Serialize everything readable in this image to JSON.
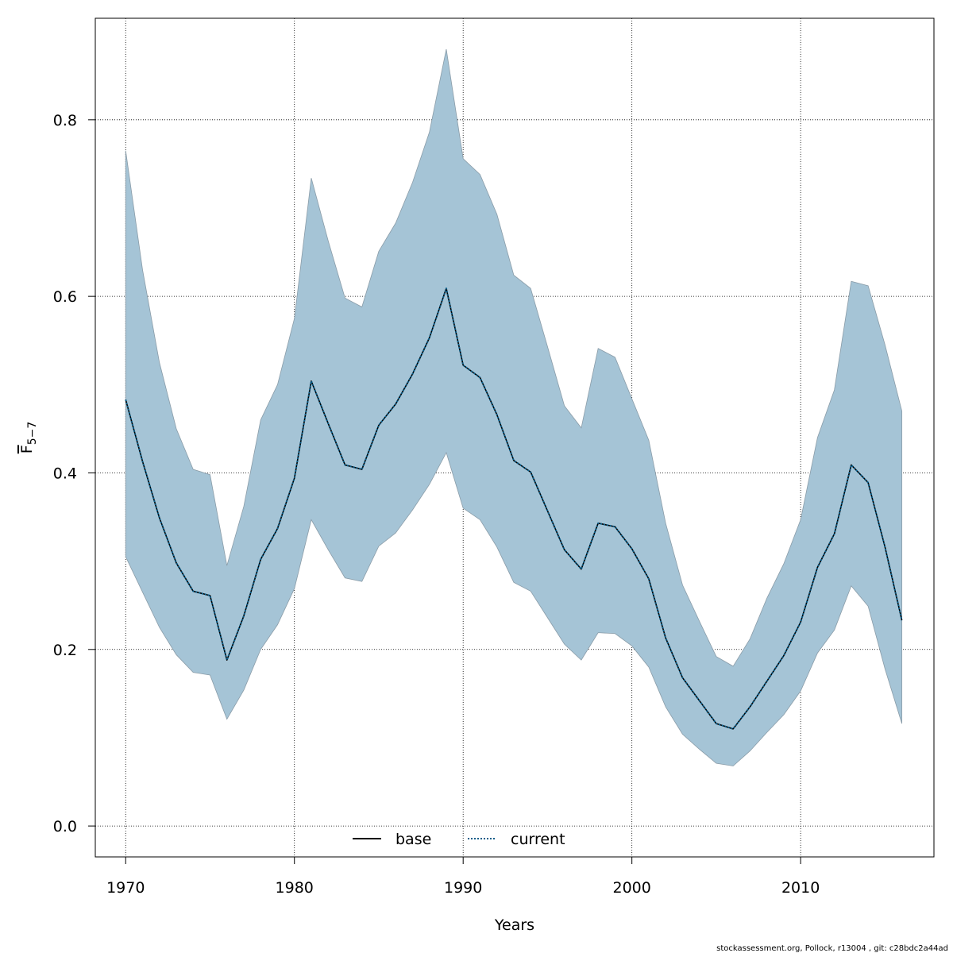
{
  "chart_data": {
    "type": "area",
    "xlabel": "Years",
    "ylabel": {
      "main": "F",
      "sub": "5−7"
    },
    "xlim": [
      1968.2,
      2017.9
    ],
    "ylim": [
      -0.035,
      0.915
    ],
    "xticks": [
      1970,
      1980,
      1990,
      2000,
      2010
    ],
    "yticks": [
      0.0,
      0.2,
      0.4,
      0.6,
      0.8
    ],
    "xtick_labels": [
      "1970",
      "1980",
      "1990",
      "2000",
      "2010"
    ],
    "ytick_labels": [
      "0.0",
      "0.2",
      "0.4",
      "0.6",
      "0.8"
    ],
    "grid": true,
    "legend_position": "bottom-center",
    "footer": "stockassessment.org, Pollock, r13004 , git: c28bdc2a44ad",
    "colors": {
      "band": "#a5c4d6",
      "band_edge": "#8a9ca8",
      "base": "#000000",
      "current": "#0a5e8a"
    },
    "x": [
      1970,
      1971,
      1972,
      1973,
      1974,
      1975,
      1976,
      1977,
      1978,
      1979,
      1980,
      1981,
      1982,
      1983,
      1984,
      1985,
      1986,
      1987,
      1988,
      1989,
      1990,
      1991,
      1992,
      1993,
      1994,
      1995,
      1996,
      1997,
      1998,
      1999,
      2000,
      2001,
      2002,
      2003,
      2004,
      2005,
      2006,
      2007,
      2008,
      2009,
      2010,
      2011,
      2012,
      2013,
      2014,
      2015,
      2016
    ],
    "series": [
      {
        "name": "base",
        "style": "solid",
        "values": [
          0.483,
          0.413,
          0.349,
          0.298,
          0.266,
          0.261,
          0.188,
          0.238,
          0.302,
          0.337,
          0.394,
          0.504,
          0.456,
          0.409,
          0.404,
          0.454,
          0.478,
          0.512,
          0.553,
          0.609,
          0.522,
          0.508,
          0.466,
          0.414,
          0.401,
          0.357,
          0.313,
          0.291,
          0.343,
          0.339,
          0.314,
          0.28,
          0.213,
          0.168,
          0.142,
          0.116,
          0.11,
          0.135,
          0.164,
          0.193,
          0.231,
          0.293,
          0.331,
          0.409,
          0.389,
          0.316,
          0.233
        ]
      },
      {
        "name": "current",
        "style": "dotted",
        "values": [
          0.483,
          0.413,
          0.349,
          0.298,
          0.266,
          0.261,
          0.188,
          0.238,
          0.302,
          0.337,
          0.394,
          0.504,
          0.456,
          0.409,
          0.404,
          0.454,
          0.478,
          0.512,
          0.553,
          0.609,
          0.522,
          0.508,
          0.466,
          0.414,
          0.401,
          0.357,
          0.313,
          0.291,
          0.343,
          0.339,
          0.314,
          0.28,
          0.213,
          0.168,
          0.142,
          0.116,
          0.11,
          0.135,
          0.164,
          0.193,
          0.231,
          0.293,
          0.331,
          0.409,
          0.389,
          0.316,
          0.233
        ]
      }
    ],
    "band_lower": [
      0.305,
      0.265,
      0.225,
      0.194,
      0.174,
      0.171,
      0.121,
      0.154,
      0.2,
      0.228,
      0.269,
      0.347,
      0.313,
      0.281,
      0.277,
      0.317,
      0.332,
      0.358,
      0.387,
      0.423,
      0.36,
      0.347,
      0.316,
      0.276,
      0.266,
      0.236,
      0.206,
      0.188,
      0.219,
      0.218,
      0.204,
      0.18,
      0.135,
      0.104,
      0.087,
      0.071,
      0.068,
      0.085,
      0.106,
      0.126,
      0.153,
      0.196,
      0.222,
      0.272,
      0.249,
      0.178,
      0.116
    ],
    "band_upper": [
      0.765,
      0.63,
      0.525,
      0.45,
      0.404,
      0.398,
      0.295,
      0.362,
      0.46,
      0.5,
      0.575,
      0.734,
      0.663,
      0.598,
      0.588,
      0.651,
      0.683,
      0.729,
      0.786,
      0.88,
      0.756,
      0.738,
      0.693,
      0.624,
      0.609,
      0.543,
      0.476,
      0.451,
      0.541,
      0.531,
      0.484,
      0.437,
      0.343,
      0.273,
      0.232,
      0.192,
      0.181,
      0.212,
      0.258,
      0.297,
      0.347,
      0.44,
      0.494,
      0.617,
      0.612,
      0.545,
      0.47
    ]
  }
}
